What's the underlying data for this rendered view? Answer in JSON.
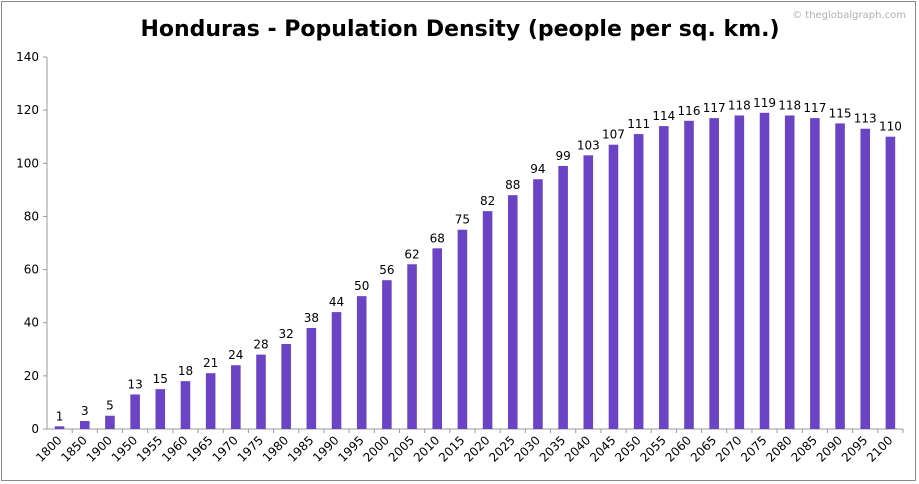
{
  "chart_data": {
    "type": "bar",
    "title": "Honduras - Population Density (people per sq. km.)",
    "watermark": "© theglobalgraph.com",
    "xlabel": "",
    "ylabel": "",
    "ylim": [
      0,
      140
    ],
    "yticks": [
      "0",
      "20",
      "40",
      "60",
      "80",
      "100",
      "120",
      "140"
    ],
    "categories": [
      "1800",
      "1850",
      "1900",
      "1950",
      "1955",
      "1960",
      "1965",
      "1970",
      "1975",
      "1980",
      "1985",
      "1990",
      "1995",
      "2000",
      "2005",
      "2010",
      "2015",
      "2020",
      "2025",
      "2030",
      "2035",
      "2040",
      "2045",
      "2050",
      "2055",
      "2060",
      "2065",
      "2070",
      "2075",
      "2080",
      "2085",
      "2090",
      "2095",
      "2100"
    ],
    "values": [
      1,
      3,
      5,
      13,
      15,
      18,
      21,
      24,
      28,
      32,
      38,
      44,
      50,
      56,
      62,
      68,
      75,
      82,
      88,
      94,
      99,
      103,
      107,
      111,
      114,
      116,
      117,
      118,
      119,
      118,
      117,
      115,
      113,
      110
    ],
    "bar_color": "#6a44c4",
    "grid": false,
    "legend": "none"
  }
}
